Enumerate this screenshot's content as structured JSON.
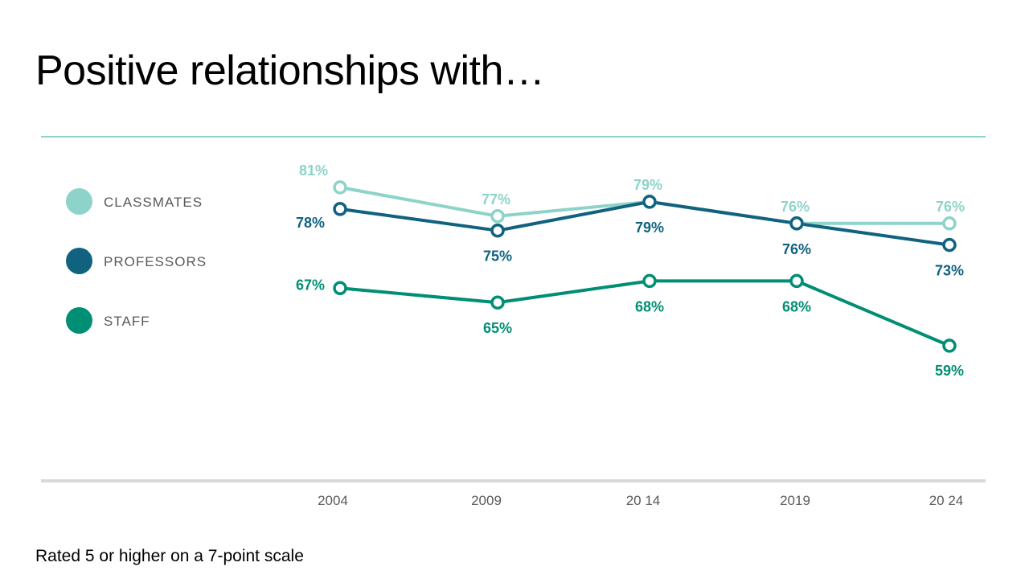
{
  "title": "Positive relationships with…",
  "footnote": "Rated 5 or higher on a 7-point scale",
  "legend": [
    {
      "label": "CLASSMATES",
      "color": "#8ed3c9"
    },
    {
      "label": "PROFESSORS",
      "color": "#10627f"
    },
    {
      "label": "STAFF",
      "color": "#008e74"
    }
  ],
  "chart_data": {
    "type": "line",
    "x": [
      "2004",
      "2009",
      "2014",
      "2019",
      "2024"
    ],
    "x_tick_labels": [
      "2004",
      "2009",
      "20 14",
      "2019",
      "20 24"
    ],
    "ylabel": "",
    "xlabel": "",
    "grid": false,
    "legend_position": "left",
    "series": [
      {
        "name": "CLASSMATES",
        "color": "#8ed3c9",
        "values": [
          81,
          77,
          79,
          76,
          76
        ],
        "labels": [
          "81%",
          "77%",
          "79%",
          "76%",
          "76%"
        ]
      },
      {
        "name": "PROFESSORS",
        "color": "#10627f",
        "values": [
          78,
          75,
          79,
          76,
          73
        ],
        "labels": [
          "78%",
          "75%",
          "79%",
          "76%",
          "73%"
        ]
      },
      {
        "name": "STAFF",
        "color": "#008e74",
        "values": [
          67,
          65,
          68,
          68,
          59
        ],
        "labels": [
          "67%",
          "65%",
          "68%",
          "68%",
          "59%"
        ]
      }
    ]
  }
}
